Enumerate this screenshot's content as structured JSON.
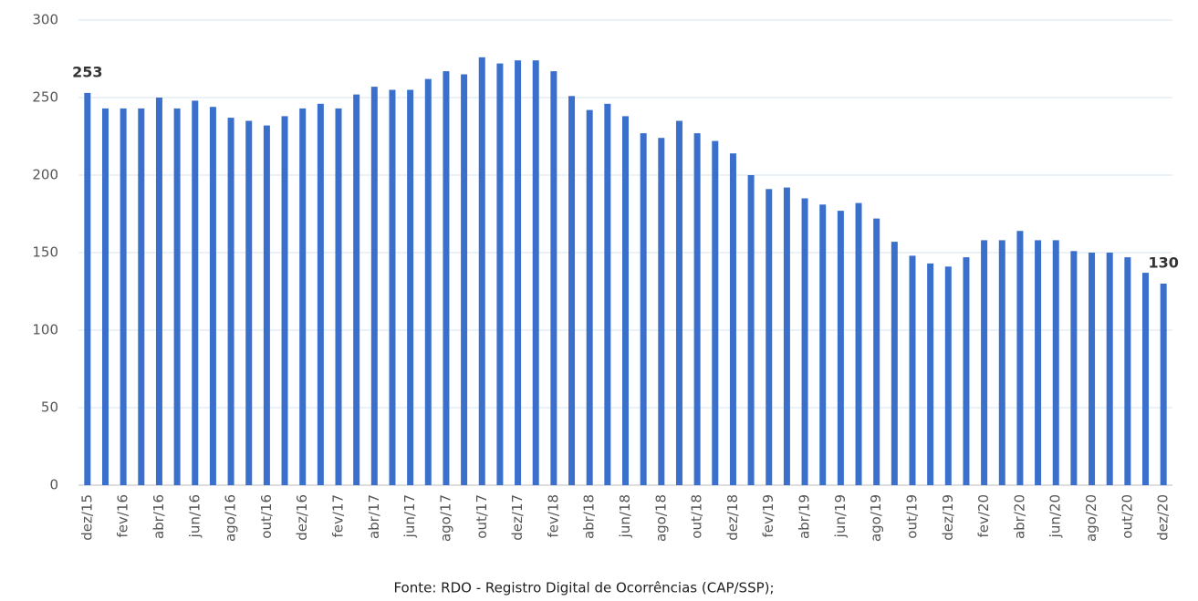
{
  "chart_data": {
    "type": "bar",
    "categories": [
      "dez/15",
      null,
      "fev/16",
      null,
      "abr/16",
      null,
      "jun/16",
      null,
      "ago/16",
      null,
      "out/16",
      null,
      "dez/16",
      null,
      "fev/17",
      null,
      "abr/17",
      null,
      "jun/17",
      null,
      "ago/17",
      null,
      "out/17",
      null,
      "dez/17",
      null,
      "fev/18",
      null,
      "abr/18",
      null,
      "jun/18",
      null,
      "ago/18",
      null,
      "out/18",
      null,
      "dez/18",
      null,
      "fev/19",
      null,
      "abr/19",
      null,
      "jun/19",
      null,
      "ago/19",
      null,
      "out/19",
      null,
      "dez/19",
      null,
      "fev/20",
      null,
      "abr/20",
      null,
      "jun/20",
      null,
      "ago/20",
      null,
      "out/20",
      null,
      "dez/20"
    ],
    "values": [
      253,
      243,
      243,
      243,
      250,
      243,
      248,
      244,
      237,
      235,
      232,
      238,
      243,
      246,
      243,
      252,
      257,
      255,
      255,
      262,
      267,
      265,
      276,
      272,
      274,
      274,
      267,
      251,
      242,
      246,
      238,
      227,
      224,
      235,
      227,
      222,
      214,
      200,
      191,
      192,
      185,
      181,
      177,
      182,
      172,
      157,
      148,
      143,
      141,
      147,
      158,
      158,
      164,
      158,
      158,
      151,
      150,
      150,
      147,
      137,
      130
    ],
    "value_labels": [
      "253",
      null,
      null,
      null,
      null,
      null,
      null,
      null,
      null,
      null,
      null,
      null,
      null,
      null,
      null,
      null,
      null,
      null,
      null,
      null,
      null,
      null,
      null,
      null,
      null,
      null,
      null,
      null,
      null,
      null,
      null,
      null,
      null,
      null,
      null,
      null,
      null,
      null,
      null,
      null,
      null,
      null,
      null,
      null,
      null,
      null,
      null,
      null,
      null,
      null,
      null,
      null,
      null,
      null,
      null,
      null,
      null,
      null,
      null,
      null,
      "130"
    ],
    "color": "#3a6fcc",
    "ylim": [
      0,
      300
    ],
    "yticks": [
      0,
      50,
      100,
      150,
      200,
      250,
      300
    ],
    "grid": true,
    "source": "Fonte: RDO - Registro Digital de Ocorrências (CAP/SSP);"
  }
}
